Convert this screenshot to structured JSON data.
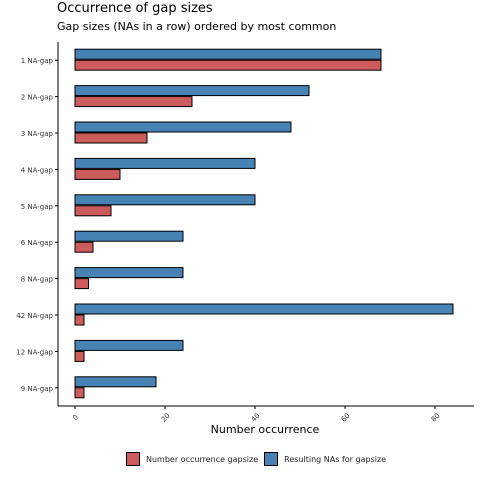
{
  "chart_data": {
    "type": "bar",
    "orientation": "horizontal",
    "title": "Occurrence of gap sizes",
    "subtitle": "Gap sizes (NAs in a row) ordered by most common",
    "xlabel": "Number occurrence",
    "ylabel": "",
    "xlim": [
      0,
      88
    ],
    "xticks": [
      0,
      20,
      40,
      60,
      80
    ],
    "categories": [
      "1 NA-gap",
      "2 NA-gap",
      "3 NA-gap",
      "4 NA-gap",
      "5 NA-gap",
      "6 NA-gap",
      "8 NA-gap",
      "42 NA-gap",
      "12 NA-gap",
      "9 NA-gap"
    ],
    "series": [
      {
        "name": "Number occurrence gapsize",
        "color": "#cd5c5c",
        "values": [
          68,
          26,
          16,
          10,
          8,
          4,
          3,
          2,
          2,
          2
        ]
      },
      {
        "name": "Resulting NAs for gapsize",
        "color": "#4682b4",
        "values": [
          68,
          52,
          48,
          40,
          40,
          24,
          24,
          84,
          24,
          18
        ]
      }
    ],
    "legend_position": "bottom",
    "grid": false
  }
}
